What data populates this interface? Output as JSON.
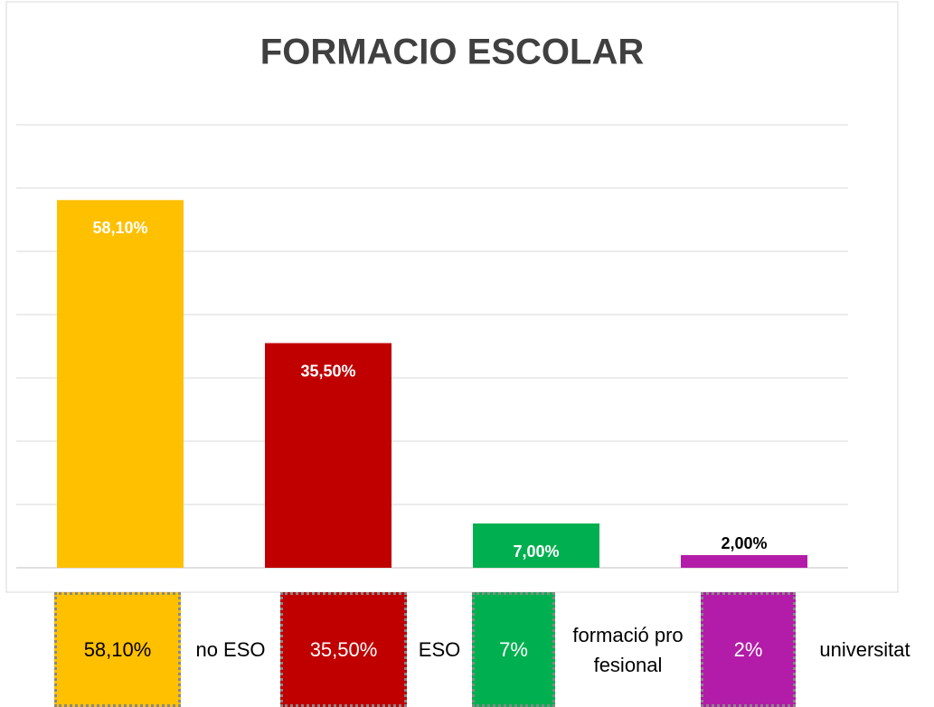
{
  "chart_data": {
    "type": "bar",
    "title": "FORMACIO ESCOLAR",
    "categories": [
      "no ESO",
      "ESO",
      "formació profesional",
      "universitat"
    ],
    "values": [
      58.1,
      35.5,
      7,
      2
    ],
    "value_labels": [
      "58,10%",
      "35,50%",
      "7,00%",
      "2,00%"
    ],
    "colors": [
      "#ffc000",
      "#c00000",
      "#00b050",
      "#b31ca8"
    ],
    "legend_labels": [
      "58,10%",
      "35,50%",
      "7%",
      "2%"
    ],
    "ylim": [
      0,
      70
    ],
    "yticks": [
      0,
      10,
      20,
      30,
      40,
      50,
      60,
      70
    ],
    "grid": true
  }
}
